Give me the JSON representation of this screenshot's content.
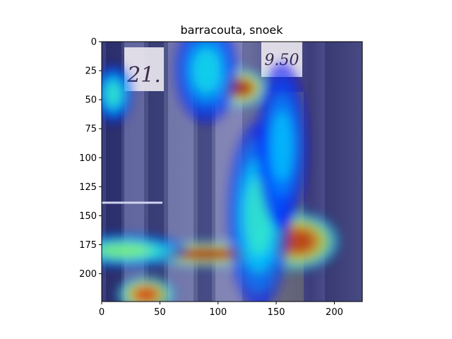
{
  "chart_data": {
    "type": "heatmap",
    "title": "barracouta, snoek",
    "xlabel": "",
    "ylabel": "",
    "image_size": [
      224,
      224
    ],
    "xlim": [
      0,
      224
    ],
    "ylim": [
      224,
      0
    ],
    "x_ticks": [
      0,
      50,
      100,
      150,
      200
    ],
    "y_ticks": [
      0,
      25,
      50,
      75,
      100,
      125,
      150,
      175,
      200
    ],
    "grid": false,
    "colormap": "jet",
    "overlay_on_photo": true,
    "photo_text": {
      "left_price_tag": "21.",
      "right_price_tag": "9.50"
    },
    "hotspots": [
      {
        "x": 120,
        "y": 40,
        "intensity": 1.0,
        "rx": 12,
        "ry": 9
      },
      {
        "x": 90,
        "y": 183,
        "intensity": 1.0,
        "rx": 34,
        "ry": 6
      },
      {
        "x": 168,
        "y": 172,
        "intensity": 0.95,
        "rx": 20,
        "ry": 14
      },
      {
        "x": 38,
        "y": 218,
        "intensity": 0.9,
        "rx": 14,
        "ry": 9
      },
      {
        "x": 20,
        "y": 180,
        "intensity": 0.55,
        "rx": 30,
        "ry": 8
      },
      {
        "x": 135,
        "y": 150,
        "intensity": 0.45,
        "rx": 15,
        "ry": 45
      },
      {
        "x": 10,
        "y": 45,
        "intensity": 0.45,
        "rx": 9,
        "ry": 14
      },
      {
        "x": 90,
        "y": 25,
        "intensity": 0.4,
        "rx": 15,
        "ry": 25
      },
      {
        "x": 155,
        "y": 90,
        "intensity": 0.35,
        "rx": 12,
        "ry": 40
      }
    ]
  }
}
